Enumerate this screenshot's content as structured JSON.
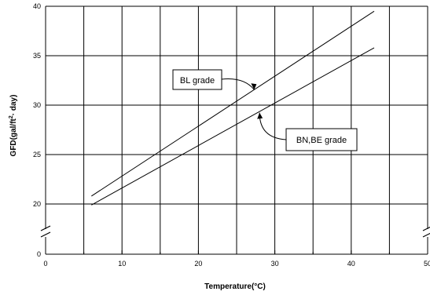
{
  "chart_data": {
    "type": "line",
    "xlabel": "Temperature(°C)",
    "ylabel_main": "GFD(gal/ft",
    "ylabel_sup": "2",
    "ylabel_tail": "· day)",
    "xlim": [
      0,
      50
    ],
    "ylim_display": [
      0,
      40
    ],
    "y_axis_break": {
      "between": [
        0,
        20
      ]
    },
    "x_ticks": [
      "0",
      "10",
      "20",
      "30",
      "40",
      "50"
    ],
    "y_ticks": [
      "0",
      "20",
      "25",
      "30",
      "35",
      "40"
    ],
    "grid": true,
    "series": [
      {
        "name": "BL grade",
        "x": [
          6,
          43
        ],
        "y": [
          20.8,
          39.5
        ]
      },
      {
        "name": "BN,BE grade",
        "x": [
          6,
          43
        ],
        "y": [
          19.6,
          35.8
        ]
      }
    ],
    "annotations": [
      {
        "text": "BL grade",
        "series": "BL grade"
      },
      {
        "text": "BN,BE grade",
        "series": "BN,BE grade"
      }
    ]
  }
}
